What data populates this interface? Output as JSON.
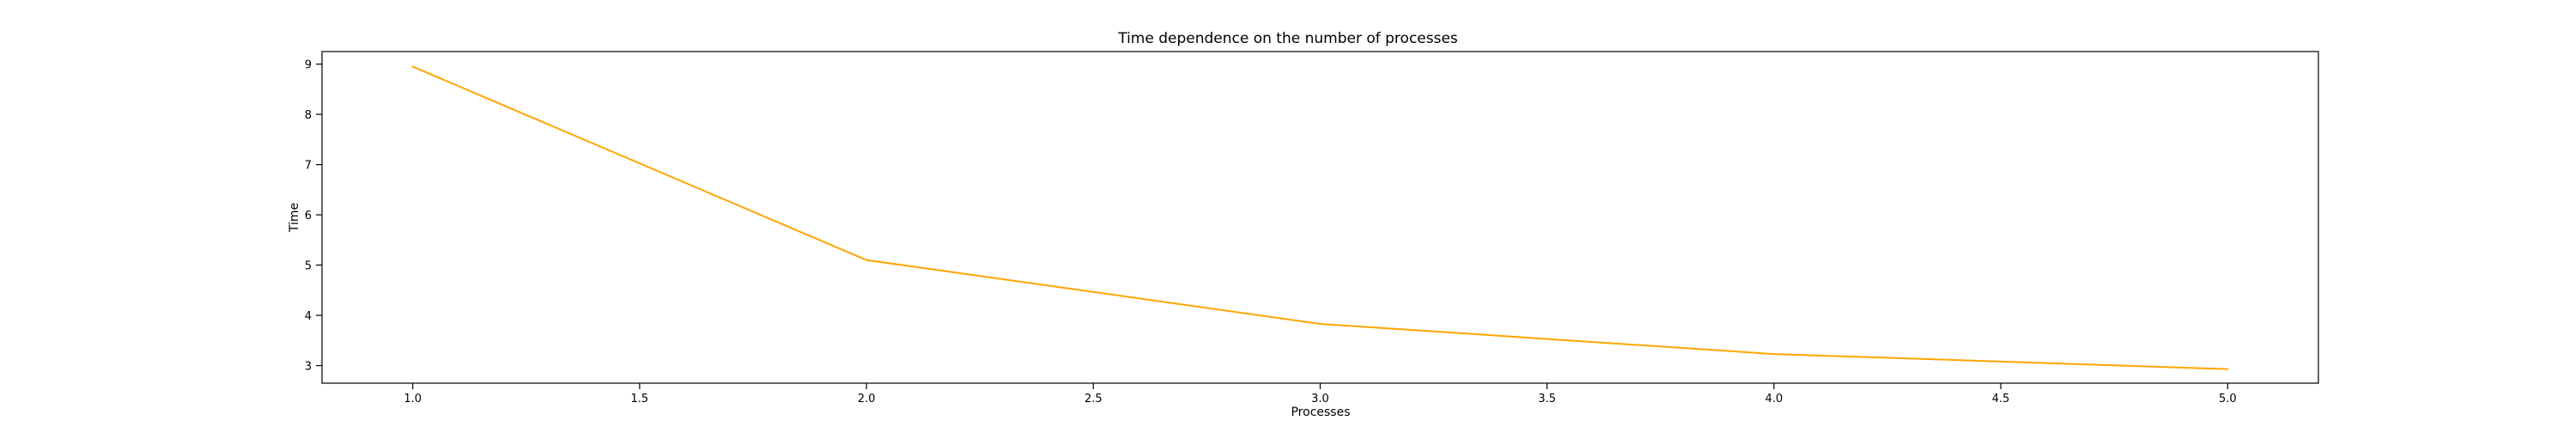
{
  "chart_data": {
    "type": "line",
    "title": "Time dependence on the number of processes",
    "xlabel": "Processes",
    "ylabel": "Time",
    "xlim": [
      0.8,
      5.2
    ],
    "ylim": [
      2.65,
      9.25
    ],
    "x_ticks": [
      1.0,
      1.5,
      2.0,
      2.5,
      3.0,
      3.5,
      4.0,
      4.5,
      5.0
    ],
    "x_tick_labels": [
      "1.0",
      "1.5",
      "2.0",
      "2.5",
      "3.0",
      "3.5",
      "4.0",
      "4.5",
      "5.0"
    ],
    "y_ticks": [
      3,
      4,
      5,
      6,
      7,
      8,
      9
    ],
    "y_tick_labels": [
      "3",
      "4",
      "5",
      "6",
      "7",
      "8",
      "9"
    ],
    "grid": false,
    "legend": "none",
    "series": [
      {
        "color": "#ffa500",
        "x": [
          1,
          2,
          3,
          4,
          5
        ],
        "y": [
          8.95,
          5.1,
          3.83,
          3.23,
          2.93
        ]
      }
    ]
  }
}
